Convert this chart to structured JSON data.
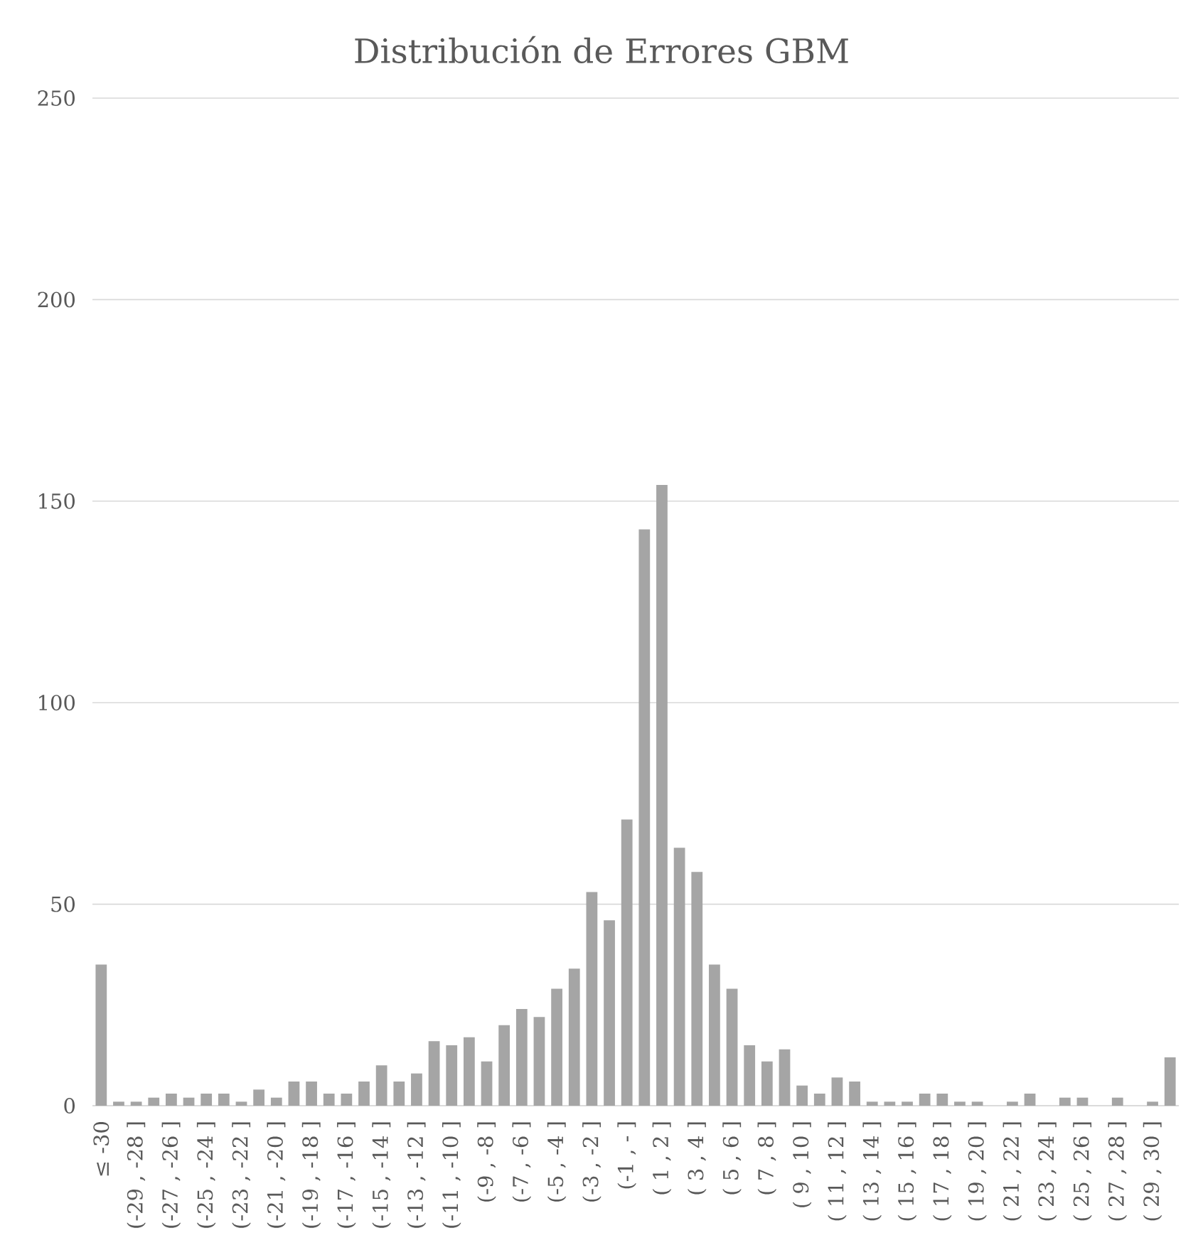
{
  "chart_data": {
    "type": "bar",
    "title": "Distribución de Errores GBM",
    "categories": [
      "≤ -30",
      null,
      "(-29 , -28 ]",
      null,
      "(-27 , -26 ]",
      null,
      "(-25 , -24 ]",
      null,
      "(-23 , -22 ]",
      null,
      "(-21 , -20 ]",
      null,
      "(-19 , -18 ]",
      null,
      "(-17 , -16 ]",
      null,
      "(-15 , -14 ]",
      null,
      "(-13 , -12 ]",
      null,
      "(-11 , -10 ]",
      null,
      "(-9 , -8 ]",
      null,
      "(-7 , -6 ]",
      null,
      "(-5 , -4 ]",
      null,
      "(-3 , -2 ]",
      null,
      "(-1 , - ]",
      null,
      "( 1 , 2 ]",
      null,
      "( 3 , 4 ]",
      null,
      "( 5 , 6 ]",
      null,
      "( 7 , 8 ]",
      null,
      "( 9 , 10 ]",
      null,
      "( 11 , 12 ]",
      null,
      "( 13 , 14 ]",
      null,
      "( 15 , 16 ]",
      null,
      "( 17 , 18 ]",
      null,
      "( 19 , 20 ]",
      null,
      "( 21 , 22 ]",
      null,
      "( 23 , 24 ]",
      null,
      "( 25 , 26 ]",
      null,
      "( 27 , 28 ]",
      null,
      "( 29 , 30 ]",
      null
    ],
    "values": [
      35,
      1,
      1,
      2,
      3,
      2,
      3,
      3,
      1,
      4,
      2,
      6,
      6,
      3,
      3,
      6,
      10,
      6,
      8,
      16,
      15,
      17,
      11,
      20,
      24,
      22,
      29,
      34,
      53,
      46,
      71,
      143,
      154,
      64,
      58,
      35,
      29,
      15,
      11,
      14,
      5,
      3,
      7,
      6,
      1,
      1,
      1,
      3,
      3,
      1,
      1,
      0,
      1,
      3,
      0,
      2,
      2,
      0,
      2,
      0,
      1,
      12
    ],
    "color": "#a5a5a5",
    "ylim": [
      0,
      250
    ],
    "yticks": [
      0,
      50,
      100,
      150,
      200,
      250
    ],
    "grid": "y"
  }
}
